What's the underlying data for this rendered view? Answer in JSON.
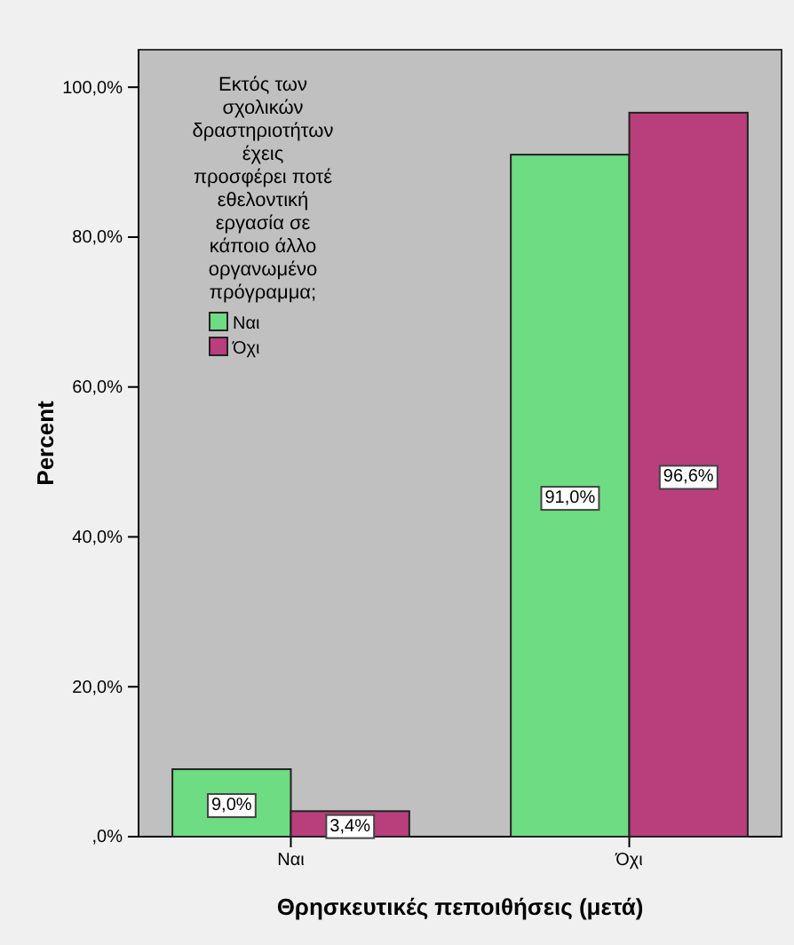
{
  "chart_data": {
    "type": "bar",
    "xlabel": "Θρησκευτικές πεποιθήσεις (μετά)",
    "ylabel": "Percent",
    "legend_title": "Εκτός των σχολικών δραστηριοτήτων έχεις προσφέρει ποτέ εθελοντική εργασία σε κάποιο άλλο οργανωμένο πρόγραμμα;",
    "categories": [
      "Ναι",
      "Όχι"
    ],
    "series": [
      {
        "name": "Ναι",
        "color": "#6ddc82",
        "values": [
          9.0,
          91.0
        ]
      },
      {
        "name": "Όχι",
        "color": "#b93e7c",
        "values": [
          3.4,
          96.6
        ]
      }
    ],
    "ylim": [
      0,
      105
    ],
    "yticks": [
      {
        "value": 0,
        "label": ",0%"
      },
      {
        "value": 20,
        "label": "20,0%"
      },
      {
        "value": 40,
        "label": "40,0%"
      },
      {
        "value": 60,
        "label": "60,0%"
      },
      {
        "value": 80,
        "label": "80,0%"
      },
      {
        "value": 100,
        "label": "100,0%"
      }
    ],
    "value_labels": [
      [
        "9,0%",
        "91,0%"
      ],
      [
        "3,4%",
        "96,6%"
      ]
    ],
    "legend": "top left"
  }
}
